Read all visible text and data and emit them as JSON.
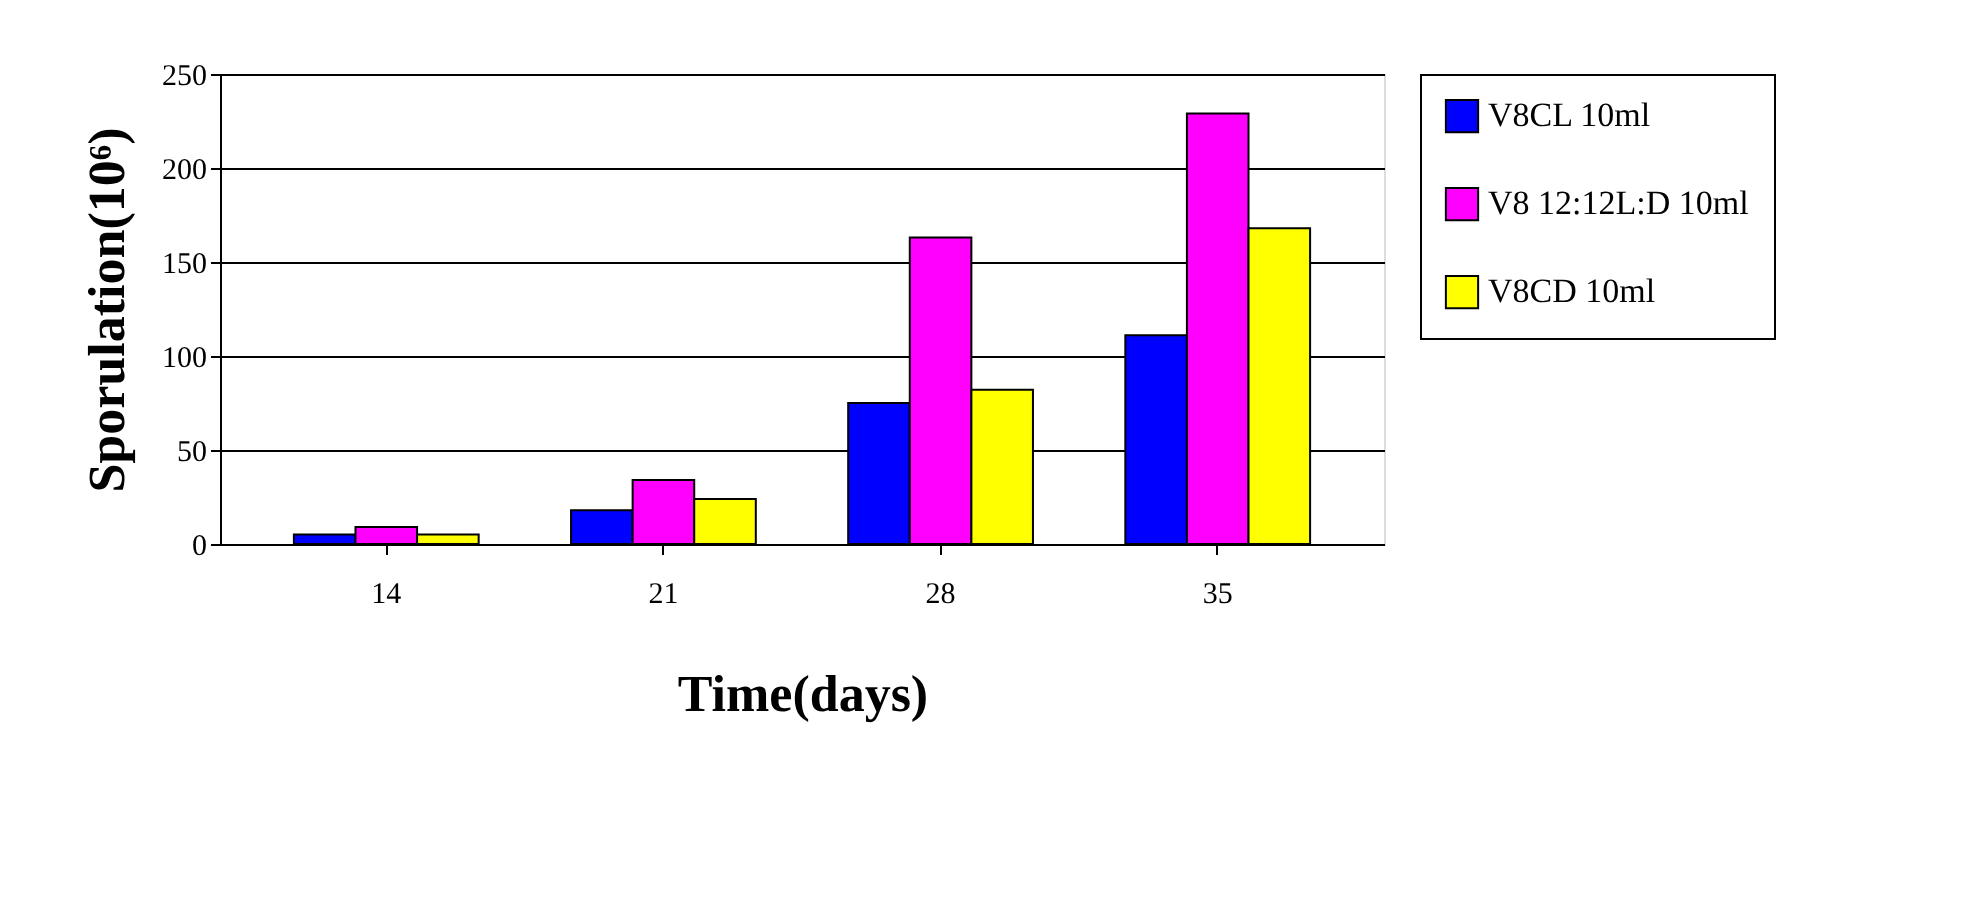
{
  "chart_data": {
    "type": "bar",
    "xlabel": "Time(days)",
    "ylabel": "Sporulation(10⁶)",
    "categories": [
      "14",
      "21",
      "28",
      "35"
    ],
    "series": [
      {
        "name": "V8CL 10ml",
        "color": "#0000ff",
        "values": [
          5,
          18,
          75,
          111
        ]
      },
      {
        "name": "V8 12:12L:D 10ml",
        "color": "#ff00ff",
        "values": [
          9,
          34,
          163,
          229
        ]
      },
      {
        "name": "V8CD 10ml",
        "color": "#ffff00",
        "values": [
          5,
          24,
          82,
          168
        ]
      }
    ],
    "ylim": [
      0,
      250
    ],
    "yticks": [
      0,
      50,
      100,
      150,
      200,
      250
    ],
    "grid": "y",
    "legend": "right"
  }
}
